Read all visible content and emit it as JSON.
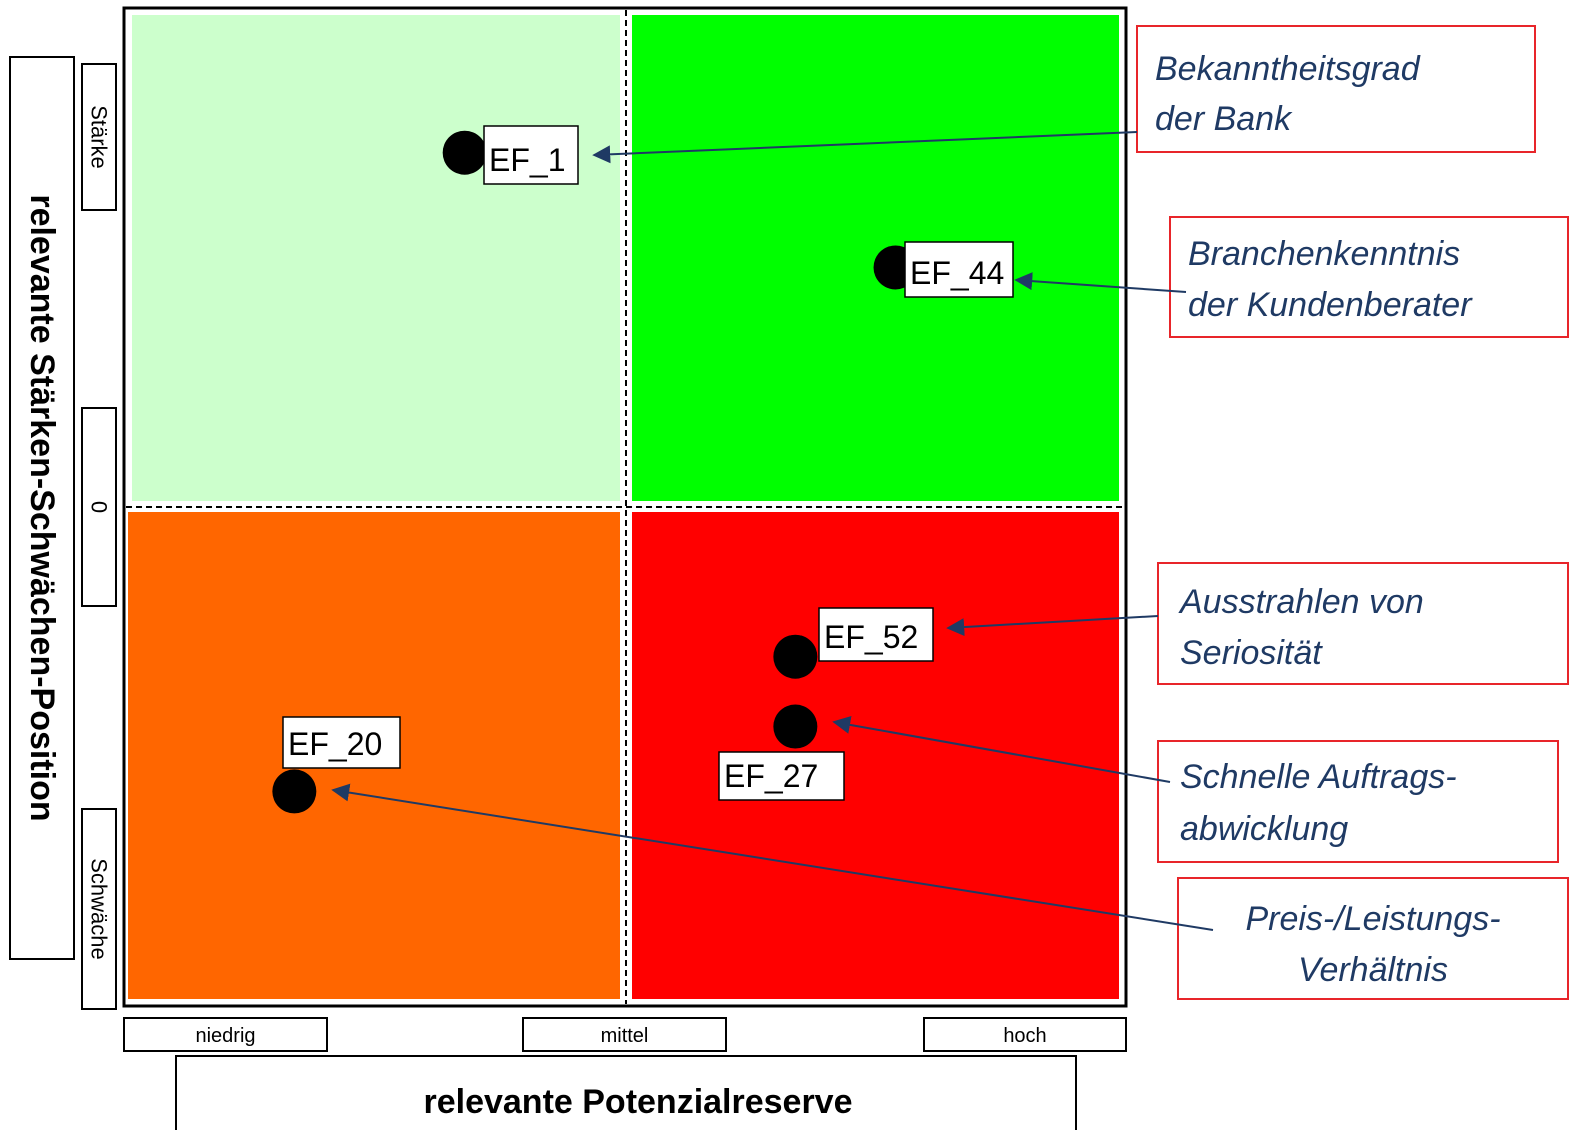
{
  "chart_data": {
    "type": "scatter",
    "title": "",
    "xlabel": "relevante Potenzialreserve",
    "ylabel": "relevante Stärken-Schwächen-Position",
    "x_ticks": [
      "niedrig",
      "mittel",
      "hoch"
    ],
    "y_ticks": {
      "top": "Stärke",
      "middle": "0",
      "bottom": "Schwäche"
    },
    "xlim": [
      0,
      1
    ],
    "ylim": [
      -1,
      1
    ],
    "grid": false,
    "quadrant_colors": {
      "top_left": "#ccffcc",
      "top_right": "#00ff00",
      "bottom_left": "#ff6600",
      "bottom_right": "#ff0000"
    },
    "points": [
      {
        "id": "EF_1",
        "x": 0.34,
        "y": 0.71,
        "label_pos": "right",
        "annotation": [
          "Bekanntheitsgrad",
          "der Bank"
        ],
        "annotation_align": "left"
      },
      {
        "id": "EF_44",
        "x": 0.77,
        "y": 0.48,
        "label_pos": "right",
        "annotation": [
          "Branchenkenntnis",
          "der Kundenberater"
        ],
        "annotation_align": "left"
      },
      {
        "id": "EF_52",
        "x": 0.67,
        "y": -0.3,
        "label_pos": "above-right",
        "annotation": [
          "Ausstrahlen von",
          "Seriosität"
        ],
        "annotation_align": "left"
      },
      {
        "id": "EF_27",
        "x": 0.67,
        "y": -0.44,
        "label_pos": "below",
        "annotation": [
          "Schnelle Auftrags-",
          "abwicklung"
        ],
        "annotation_align": "left"
      },
      {
        "id": "EF_20",
        "x": 0.17,
        "y": -0.57,
        "label_pos": "above",
        "annotation": [
          "Preis-/Leistungs-",
          "Verhältnis"
        ],
        "annotation_align": "center"
      }
    ]
  },
  "colors": {
    "point": "#000000",
    "arrow": "#1f3a64",
    "annotation_border": "#e8252a",
    "plot_border": "#000000"
  }
}
